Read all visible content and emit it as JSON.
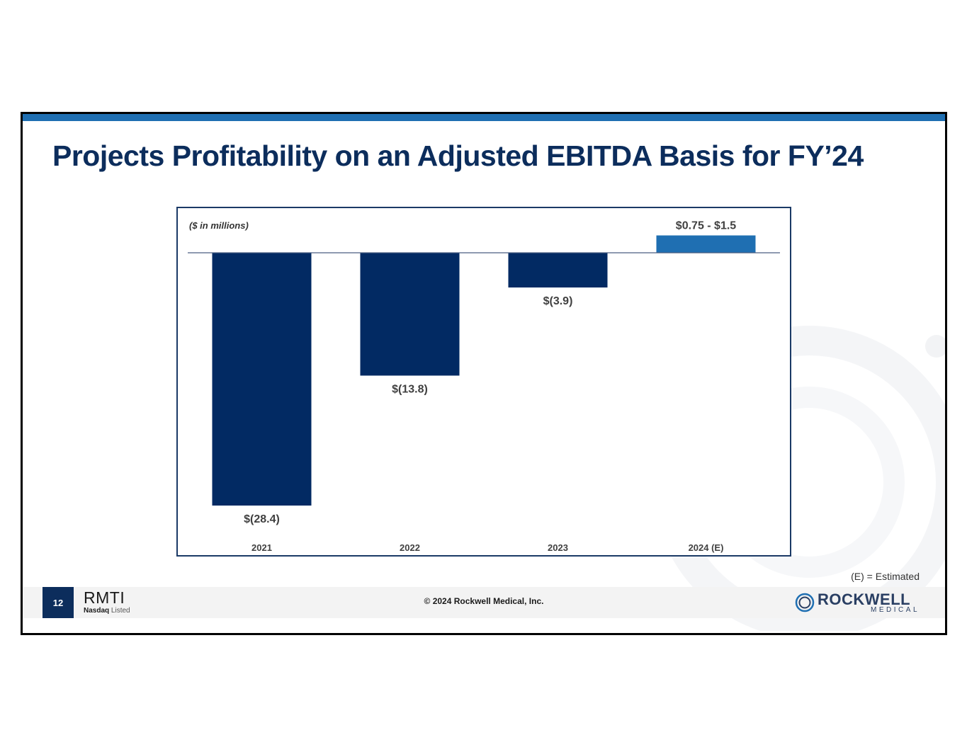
{
  "slide": {
    "title": "Projects Profitability on an Adjusted EBITDA Basis for FY’24",
    "footnote": "(E) = Estimated",
    "page_number": "12",
    "ticker": "RMTI",
    "ticker_sub_bold": "Nasdaq",
    "ticker_sub": "Listed",
    "copyright": "© 2024 Rockwell Medical, Inc.",
    "logo_name": "ROCKWELL",
    "logo_sub": "MEDICAL"
  },
  "colors": {
    "title": "#0c2d5c",
    "bar_actual": "#022a63",
    "bar_estimate": "#1f6fb2",
    "top_bar": "#1f6fb2"
  },
  "chart_data": {
    "type": "bar",
    "unit_label": "($ in millions)",
    "categories": [
      "2021",
      "2022",
      "2023",
      "2024 (E)"
    ],
    "values": [
      -28.4,
      -13.8,
      -3.9,
      1.5
    ],
    "estimate_range": [
      0.75,
      1.5
    ],
    "data_labels": [
      "$(28.4)",
      "$(13.8)",
      "$(3.9)",
      "$0.75 - $1.5"
    ],
    "estimated": [
      false,
      false,
      false,
      true
    ],
    "ylim": [
      -28.4,
      1.5
    ],
    "grid": false,
    "legend": "none"
  }
}
